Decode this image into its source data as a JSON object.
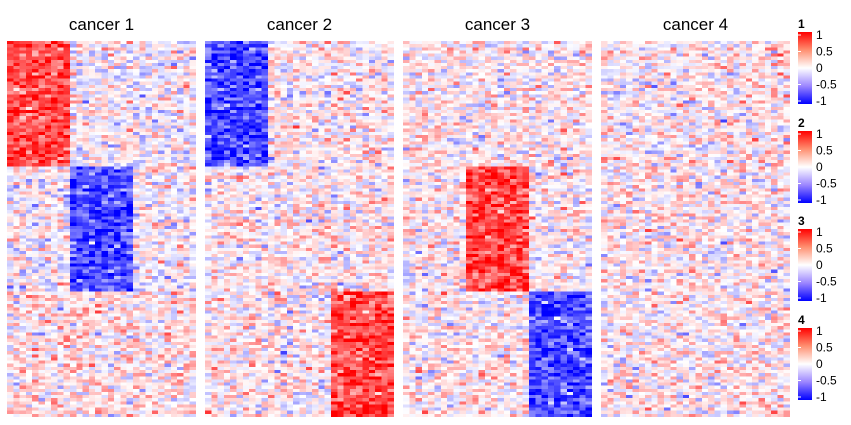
{
  "chart_data": {
    "type": "heatmap",
    "panels": [
      {
        "title": "cancer 1",
        "column_groups": 3,
        "row_groups": 3,
        "block_means": [
          [
            0.7,
            0.0,
            0.0
          ],
          [
            0.0,
            -0.7,
            0.0
          ],
          [
            0.1,
            0.1,
            0.1
          ]
        ]
      },
      {
        "title": "cancer 2",
        "column_groups": 3,
        "row_groups": 3,
        "block_means": [
          [
            -0.7,
            0.05,
            0.05
          ],
          [
            0.05,
            0.05,
            0.05
          ],
          [
            0.05,
            0.05,
            0.7
          ]
        ]
      },
      {
        "title": "cancer 3",
        "column_groups": 3,
        "row_groups": 3,
        "block_means": [
          [
            0.05,
            0.05,
            0.05
          ],
          [
            0.05,
            0.7,
            0.05
          ],
          [
            0.05,
            0.05,
            -0.7
          ]
        ]
      },
      {
        "title": "cancer 4",
        "column_groups": 3,
        "row_groups": 3,
        "block_means": [
          [
            0.05,
            0.05,
            0.05
          ],
          [
            0.05,
            0.05,
            0.05
          ],
          [
            0.05,
            0.05,
            0.05
          ]
        ]
      }
    ],
    "color_scale": {
      "min": -1,
      "mid": 0,
      "max": 1,
      "low": "#0000FF",
      "mid_color": "#FFFFFF",
      "high": "#FF0000"
    },
    "legends": [
      {
        "title": "1",
        "ticks": [
          "1",
          "0.5",
          "0",
          "-0.5",
          "-1"
        ]
      },
      {
        "title": "2",
        "ticks": [
          "1",
          "0.5",
          "0",
          "-0.5",
          "-1"
        ]
      },
      {
        "title": "3",
        "ticks": [
          "1",
          "0.5",
          "0",
          "-0.5",
          "-1"
        ]
      },
      {
        "title": "4",
        "ticks": [
          "1",
          "0.5",
          "0",
          "-0.5",
          "-1"
        ]
      }
    ]
  }
}
